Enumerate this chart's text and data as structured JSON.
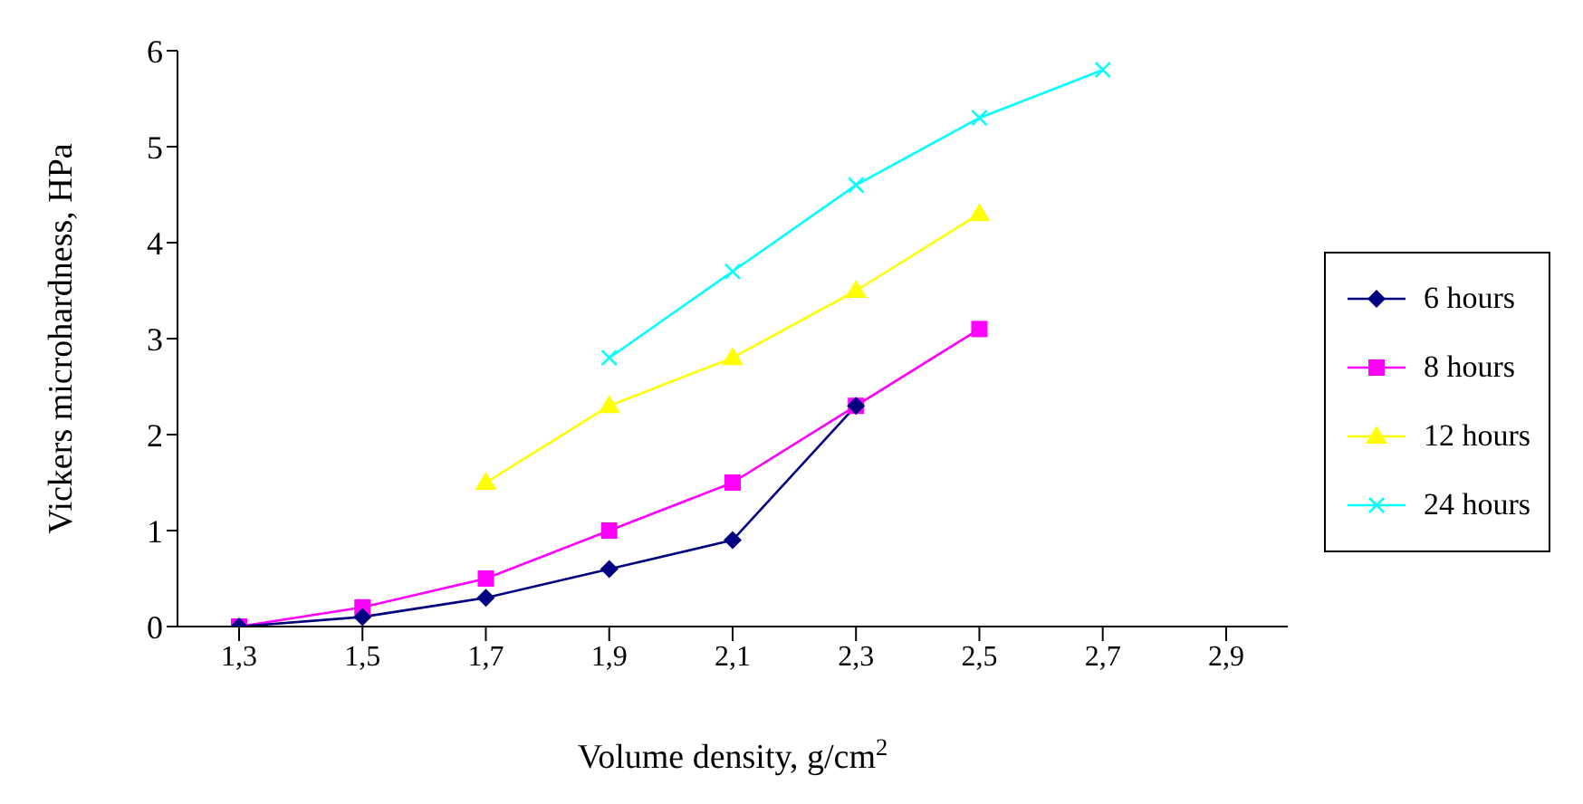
{
  "chart_data": {
    "type": "line",
    "xlabel": "Volume density, g/cm$^{2}$",
    "ylabel": "Vickers microhardness, HPa",
    "categories": [
      "1,3",
      "1,5",
      "1,7",
      "1,9",
      "2,1",
      "2,3",
      "2,5",
      "2,7",
      "2,9"
    ],
    "series": [
      {
        "name": "6 hours",
        "color": "#000080",
        "marker": "diamond",
        "values": [
          0,
          0.1,
          0.3,
          0.6,
          0.9,
          2.3,
          null,
          null,
          null
        ]
      },
      {
        "name": "8 hours",
        "color": "#ff00ff",
        "marker": "square",
        "values": [
          0,
          0.2,
          0.5,
          1.0,
          1.5,
          2.3,
          3.1,
          null,
          null
        ]
      },
      {
        "name": "12 hours",
        "color": "#ffff00",
        "marker": "triangle",
        "values": [
          null,
          null,
          1.5,
          2.3,
          2.8,
          3.5,
          4.3,
          null,
          null
        ]
      },
      {
        "name": "24 hours",
        "color": "#00ffff",
        "marker": "cross",
        "values": [
          null,
          null,
          null,
          2.8,
          3.7,
          4.6,
          5.3,
          5.8,
          null
        ]
      }
    ],
    "ylim": [
      0,
      6
    ],
    "yticks": [
      0,
      1,
      2,
      3,
      4,
      5,
      6
    ],
    "grid": false,
    "legend": "right"
  }
}
